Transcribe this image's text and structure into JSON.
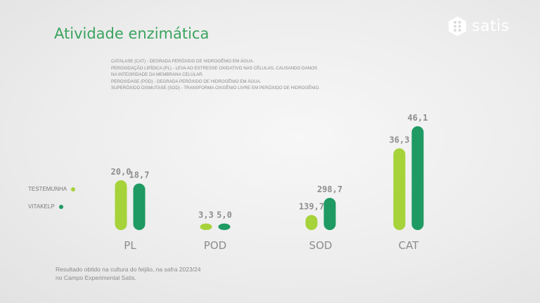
{
  "title": "Atividade enzimática",
  "brand": {
    "name": "satis",
    "logo_icon": "hexagon-grid-icon"
  },
  "definitions": [
    "CATALASE (CAT) - DEGRADA PERÓXIDO DE HIDROGÊNIO EM ÁGUA.",
    "PEROXIDAÇÃO LIPÍDICA (PL) - LEVA AO ESTRESSE OXIDATIVO NAS CÉLULAS, CAUSANDO DANOS",
    "NA INTEGRIDADE DA MEMBRANA CELULAR.",
    "PEROXIDASE (POD) - DEGRADA PERÓXIDO DE HIDROGÊNIO EM ÁGUA.",
    "SUPERÓXIDO DISMUTASE (SOD) - TRANSFORMA OXIGÊNIO LIVRE EM PERÓXIDO DE HIDROGÊNIO."
  ],
  "footer": [
    "Resultado obtido na cultura do feijão, na safra 2023/24",
    "no Campo Experimental Satis."
  ],
  "colors": {
    "testemunha": "#a6d23a",
    "vitakelp": "#1e9a62",
    "title": "#3aa35f"
  },
  "chart_data": {
    "type": "bar",
    "categories": [
      "PL",
      "POD",
      "SOD",
      "CAT"
    ],
    "series": [
      {
        "name": "TESTEMUNHA",
        "color": "#a6d23a",
        "values": [
          20.0,
          3.3,
          139.7,
          36.3
        ],
        "labels": [
          "20,0",
          "3,3",
          "139,7",
          "36,3"
        ]
      },
      {
        "name": "VITAKELP",
        "color": "#1e9a62",
        "values": [
          18.7,
          5.0,
          298.7,
          46.1
        ],
        "labels": [
          "18,7",
          "5,0",
          "298,7",
          "46,1"
        ]
      }
    ],
    "legend_position": "left",
    "grid": false,
    "axes_visible": false,
    "note": "bars scaled independently per category"
  }
}
